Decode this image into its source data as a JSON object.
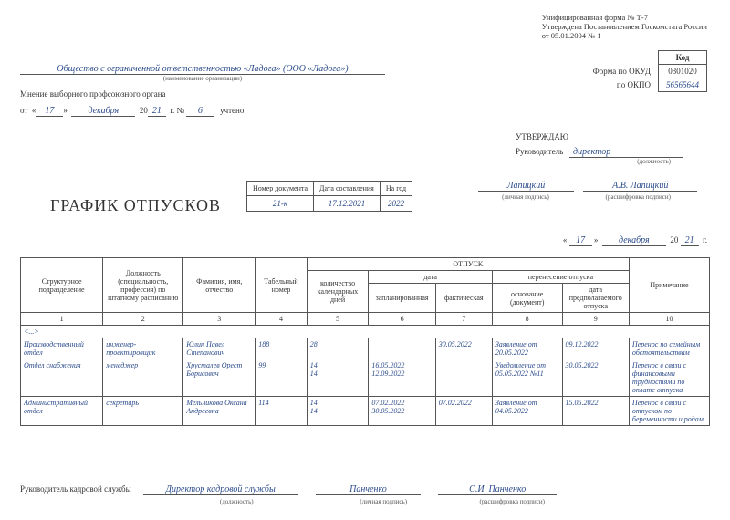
{
  "header": {
    "form_line1": "Унифицированная форма № Т-7",
    "form_line2": "Утверждена Постановлением Госкомстата России",
    "form_line3": "от 05.01.2004 № 1"
  },
  "codes": {
    "kod_label": "Код",
    "okud_label": "Форма по ОКУД",
    "okud_value": "0301020",
    "okpo_label": "по ОКПО",
    "okpo_value": "56565644"
  },
  "org": {
    "name": "Общество с ограниченной ответственностью «Ладога» (ООО «Ладога»)",
    "sub": "(наименование организации)"
  },
  "union": {
    "label": "Мнение выборного профсоюзного органа",
    "ot": "от",
    "day": "17",
    "month": "декабря",
    "year_prefix": "20",
    "year": "21",
    "g": "г. №",
    "num": "6",
    "uchteno": "учтено"
  },
  "approve": {
    "title": "УТВЕРЖДАЮ",
    "role_label": "Руководитель",
    "position": "директор",
    "position_sub": "(должность)"
  },
  "title": "ГРАФИК ОТПУСКОВ",
  "doc_meta": {
    "h1": "Номер документа",
    "h2": "Дата составления",
    "h3": "На год",
    "v1": "21-к",
    "v2": "17.12.2021",
    "v3": "2022"
  },
  "sig": {
    "signature": "Лапицкий",
    "name": "А.В. Лапицкий",
    "sub1": "(личная подпись)",
    "sub2": "(расшифровка подписи)"
  },
  "date": {
    "day": "17",
    "month": "декабря",
    "year_prefix": "20",
    "year": "21",
    "g": "г.",
    "quote_l": "«",
    "quote_r": "»"
  },
  "table": {
    "headers": {
      "c1": "Структурное подразделение",
      "c2": "Должность (специальность, профессия) по штатному расписанию",
      "c3": "Фамилия, имя, отчество",
      "c4": "Табельный номер",
      "vacation": "ОТПУСК",
      "c10": "Примечание",
      "c5": "количество календарных дней",
      "date_group": "дата",
      "transfer_group": "перенесение отпуска",
      "c6": "запланированная",
      "c7": "фактическая",
      "c8": "основание (документ)",
      "c9": "дата предполагаемого отпуска"
    },
    "nums": [
      "1",
      "2",
      "3",
      "4",
      "5",
      "6",
      "7",
      "8",
      "9",
      "10"
    ],
    "dots": "<...>",
    "rows": [
      {
        "c1": "Производственный отдел",
        "c2": "инженер-проектировщик",
        "c3": "Юлин Павел Степанович",
        "c4": "188",
        "c5": "28",
        "c6": "",
        "c7": "30.05.2022",
        "c8": "Заявление от 20.05.2022",
        "c9": "09.12.2022",
        "c10": "Перенос по семейным обстоятельствам"
      },
      {
        "c1": "Отдел снабжения",
        "c2": "менеджер",
        "c3": "Хрусталев Орест Борисович",
        "c4": "99",
        "c5": "14\n14",
        "c6": "16.05.2022\n12.09.2022",
        "c7": "",
        "c8": "Уведомление от 05.05.2022 №11",
        "c9": "30.05.2022",
        "c10": "Перенос в связи с финансовыми трудностями по оплате отпуска"
      },
      {
        "c1": "Административный отдел",
        "c2": "секретарь",
        "c3": "Мельникова Оксана Андреевна",
        "c4": "114",
        "c5": "14\n14",
        "c6": "07.02.2022\n30.05.2022",
        "c7": "07.02.2022",
        "c8": "Заявление от 04.05.2022",
        "c9": "15.05.2022",
        "c10": "Перенос в связи с отпуском по беременности и родам"
      }
    ]
  },
  "footer": {
    "role_label": "Руководитель кадровой службы",
    "position": "Директор кадровой службы",
    "position_sub": "(должность)",
    "signature": "Панченко",
    "signature_sub": "(личная подпись)",
    "name": "С.И. Панченко",
    "name_sub": "(расшифровка подписи)"
  }
}
